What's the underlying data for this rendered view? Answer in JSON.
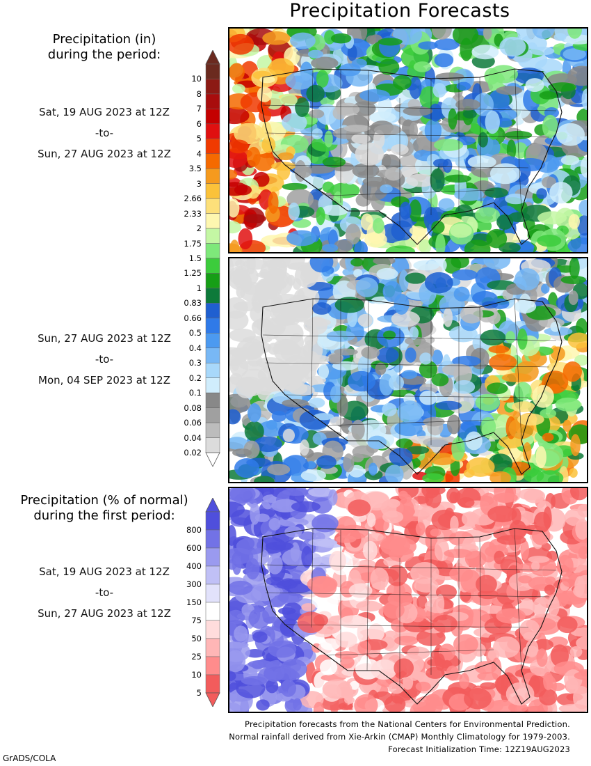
{
  "title": "Precipitation Forecasts",
  "amount_heading": [
    "Precipitation (in)",
    "during the period:"
  ],
  "pct_heading": [
    "Precipitation (% of normal)",
    "during the first period:"
  ],
  "period1": {
    "start": "Sat, 19 AUG 2023 at 12Z",
    "to": "-to-",
    "end": "Sun, 27 AUG 2023 at 12Z"
  },
  "period2": {
    "start": "Sun, 27 AUG 2023 at 12Z",
    "to": "-to-",
    "end": "Mon, 04 SEP 2023 at 12Z"
  },
  "period3": {
    "start": "Sat, 19 AUG 2023 at 12Z",
    "to": "-to-",
    "end": "Sun, 27 AUG 2023 at 12Z"
  },
  "amount_scale": {
    "labels": [
      "10",
      "8",
      "7",
      "6",
      "5",
      "4",
      "3.5",
      "3",
      "2.66",
      "2.33",
      "2",
      "1.75",
      "1.5",
      "1.25",
      "1",
      "0.83",
      "0.66",
      "0.5",
      "0.4",
      "0.3",
      "0.2",
      "0.1",
      "0.08",
      "0.06",
      "0.04",
      "0.02"
    ],
    "colors": [
      "#6b2a1f",
      "#8c1a14",
      "#a80d0d",
      "#c40000",
      "#e01010",
      "#f03a00",
      "#f56a00",
      "#f59a1e",
      "#fbc23a",
      "#fde07a",
      "#fef7b0",
      "#c4f7a4",
      "#7ee87a",
      "#3ccc3c",
      "#169e16",
      "#0d7a3a",
      "#1f5fd0",
      "#2f7ae8",
      "#4c9af0",
      "#78b8f5",
      "#a8d8fa",
      "#d0edfc",
      "#888888",
      "#a0a0a0",
      "#bcbcbc",
      "#dcdcdc"
    ]
  },
  "pct_scale": {
    "labels": [
      "800",
      "600",
      "400",
      "300",
      "150",
      "75",
      "50",
      "25",
      "10",
      "5"
    ],
    "colors": [
      "#4f4fdc",
      "#7272e6",
      "#9a9aef",
      "#c0c0f6",
      "#e2e2fb",
      "#ffffff",
      "#ffdcdc",
      "#ffb6b6",
      "#ff8c8c",
      "#f25c5c"
    ]
  },
  "footer": [
    "Precipitation forecasts from the National Centers for Environmental Prediction.",
    "Normal rainfall derived from Xie-Arkin (CMAP) Monthly Climatology for 1979-2003.",
    "Forecast Initialization Time: 12Z19AUG2023"
  ],
  "credit": "GrADS/COLA"
}
